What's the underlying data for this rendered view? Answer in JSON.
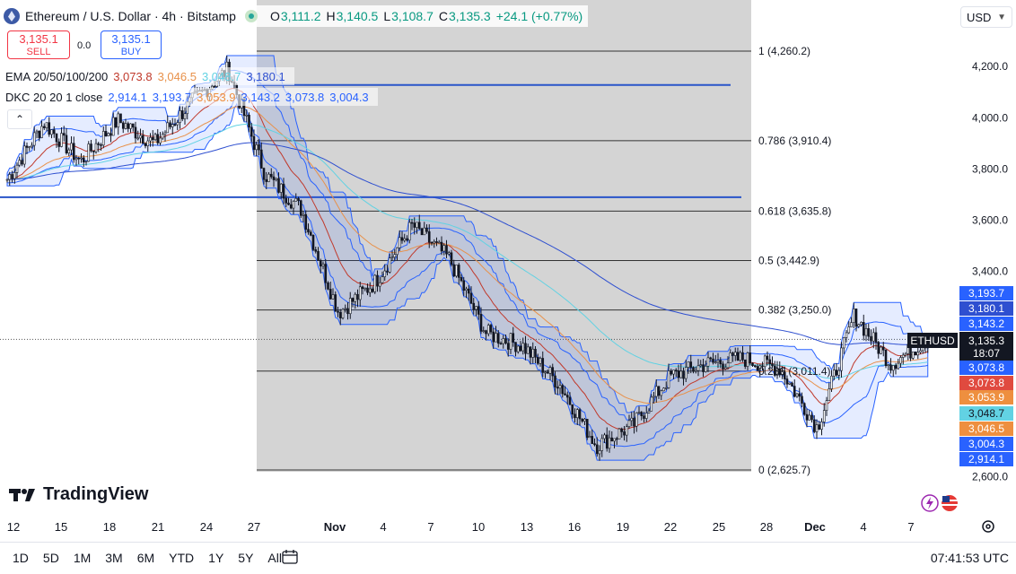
{
  "header": {
    "symbol_title": "Ethereum / U.S. Dollar · 4h · Bitstamp",
    "ohlc": [
      {
        "key": "O",
        "value": "3,111.2"
      },
      {
        "key": "H",
        "value": "3,140.5"
      },
      {
        "key": "L",
        "value": "3,108.7"
      },
      {
        "key": "C",
        "value": "3,135.3"
      }
    ],
    "change": "+24.1 (+0.77%)"
  },
  "trade": {
    "sell_price": "3,135.1",
    "sell_label": "SELL",
    "spread": "0.0",
    "buy_price": "3,135.1",
    "buy_label": "BUY"
  },
  "indicators": {
    "ema": {
      "name": "EMA 20/50/100/200",
      "values": [
        "3,073.8",
        "3,046.5",
        "3,048.7",
        "3,180.1"
      ],
      "colors": [
        "#c0392b",
        "#e8914a",
        "#62d2e3",
        "#2e4fd0"
      ]
    },
    "dkc": {
      "name": "DKC 20 20 1 close",
      "values": [
        "2,914.1",
        "3,193.7",
        "3,053.9",
        "3,143.2",
        "3,073.8",
        "3,004.3"
      ],
      "colors": [
        "#2962ff",
        "#2962ff",
        "#ee8f3f",
        "#2962ff",
        "#2962ff",
        "#2962ff"
      ]
    }
  },
  "currency": "USD",
  "chart_data": {
    "type": "candlestick",
    "y_axis_ticks": [
      2600,
      3400,
      3600,
      3800,
      4000,
      4200
    ],
    "y_axis_tick_labels": [
      "2,600.0",
      "3,400.0",
      "3,600.0",
      "3,800.0",
      "4,000.0",
      "4,200.0"
    ],
    "ylim": [
      2600,
      4260
    ],
    "x_axis_ticks": [
      "12",
      "15",
      "18",
      "21",
      "24",
      "27",
      "Nov",
      "4",
      "7",
      "10",
      "13",
      "16",
      "19",
      "22",
      "25",
      "28",
      "Dec",
      "4",
      "7"
    ],
    "fibonacci": [
      {
        "level": "1",
        "price": 4260.2,
        "label": "1 (4,260.2)"
      },
      {
        "level": "0.786",
        "price": 3910.4,
        "label": "0.786 (3,910.4)"
      },
      {
        "level": "0.618",
        "price": 3635.8,
        "label": "0.618 (3,635.8)"
      },
      {
        "level": "0.5",
        "price": 3442.9,
        "label": "0.5 (3,442.9)"
      },
      {
        "level": "0.382",
        "price": 3250.0,
        "label": "0.382 (3,250.0)"
      },
      {
        "level": "0.236",
        "price": 3011.4,
        "label": "0.236 (3,011.4)"
      },
      {
        "level": "0",
        "price": 2625.7,
        "label": "0 (2,625.7)"
      }
    ],
    "horizontal_lines": [
      4128,
      3690
    ],
    "last_price": {
      "symbol": "ETHUSD",
      "price": "3,135.3",
      "countdown": "18:07"
    },
    "price_tags": [
      {
        "label": "3,193.7",
        "color": "#2962ff"
      },
      {
        "label": "3,180.1",
        "color": "#2e4fd0"
      },
      {
        "label": "3,143.2",
        "color": "#2962ff"
      },
      {
        "label": "3,073.8",
        "color": "#2962ff"
      },
      {
        "label": "3,073.8",
        "color": "#e04a3f"
      },
      {
        "label": "3,053.9",
        "color": "#ee8f3f"
      },
      {
        "label": "3,048.7",
        "color": "#62d2e3"
      },
      {
        "label": "3,046.5",
        "color": "#ee8f3f"
      },
      {
        "label": "3,004.3",
        "color": "#2962ff"
      },
      {
        "label": "2,914.1",
        "color": "#2962ff"
      }
    ],
    "key_points": [
      {
        "x": "12",
        "close": 3760
      },
      {
        "x": "15",
        "close": 3980
      },
      {
        "x": "18",
        "close": 3830
      },
      {
        "x": "21",
        "close": 3990
      },
      {
        "x": "24",
        "close": 3900
      },
      {
        "x": "27",
        "close": 4060
      },
      {
        "x": "28 Oct",
        "close": 4190
      },
      {
        "x": "Nov",
        "close": 3780
      },
      {
        "x": "4",
        "close": 3640
      },
      {
        "x": "5",
        "close": 3240
      },
      {
        "x": "7",
        "close": 3360
      },
      {
        "x": "10",
        "close": 3580
      },
      {
        "x": "12",
        "close": 3450
      },
      {
        "x": "14",
        "close": 3160
      },
      {
        "x": "16",
        "close": 3110
      },
      {
        "x": "19",
        "close": 2960
      },
      {
        "x": "21",
        "close": 2720
      },
      {
        "x": "22",
        "close": 2800
      },
      {
        "x": "25",
        "close": 2990
      },
      {
        "x": "27",
        "close": 3040
      },
      {
        "x": "29",
        "close": 3060
      },
      {
        "x": "Dec",
        "close": 3020
      },
      {
        "x": "2",
        "close": 2790
      },
      {
        "x": "4",
        "close": 3230
      },
      {
        "x": "6",
        "close": 3040
      },
      {
        "x": "8",
        "close": 3135.3
      }
    ]
  },
  "footer": {
    "brand": "TradingView",
    "ranges": [
      "1D",
      "5D",
      "1M",
      "3M",
      "6M",
      "YTD",
      "1Y",
      "5Y",
      "All"
    ],
    "clock": "07:41:53 UTC"
  }
}
